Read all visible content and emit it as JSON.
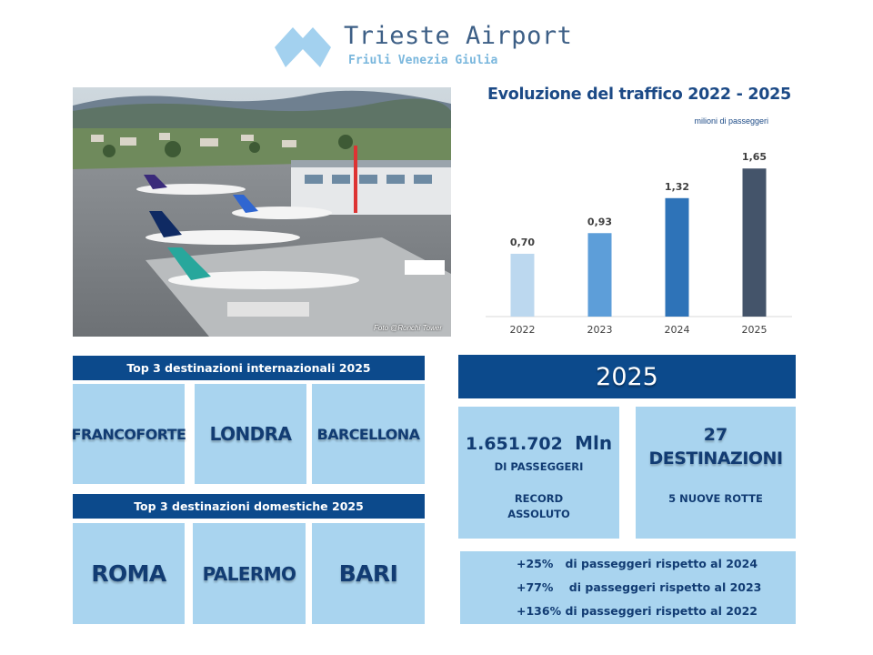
{
  "header": {
    "title": "Trieste Airport",
    "subtitle": "Friuli Venezia Giulia",
    "logo_color": "#a3d1ef"
  },
  "photo": {
    "credit": "Foto @Ronchi Tower"
  },
  "chart_data": {
    "type": "bar",
    "title": "Evoluzione del traffico 2022 - 2025",
    "unit_label": "milioni di passeggeri",
    "categories": [
      "2022",
      "2023",
      "2024",
      "2025"
    ],
    "values": [
      0.7,
      0.93,
      1.32,
      1.65
    ],
    "value_labels": [
      "0,70",
      "0,93",
      "1,32",
      "1,65"
    ],
    "colors": [
      "#bcd8ef",
      "#5d9ed9",
      "#2e73b8",
      "#44546a"
    ],
    "ylim": [
      0,
      2
    ],
    "grid": false,
    "legend": "none"
  },
  "international": {
    "header": "Top 3 destinazioni internazionali 2025",
    "items": [
      "FRANCOFORTE",
      "LONDRA",
      "BARCELLONA"
    ]
  },
  "domestic": {
    "header": "Top 3 destinazioni domestiche 2025",
    "items": [
      "ROMA",
      "PALERMO",
      "BARI"
    ]
  },
  "summary": {
    "year": "2025",
    "passengers": {
      "value": "1.651.702",
      "unit": "Mln",
      "label": "DI PASSEGGERI",
      "record_line1": "RECORD",
      "record_line2": "ASSOLUTO"
    },
    "destinations": {
      "count": "27",
      "label": "DESTINAZIONI",
      "new_routes": "5 NUOVE ROTTE"
    },
    "growth": [
      "+25%   di passeggeri rispetto al 2024",
      "+77%    di passeggeri rispetto al 2023",
      "+136% di passeggeri rispetto al 2022"
    ]
  },
  "colors": {
    "banner": "#0c4a8c",
    "tile": "#a9d4ef",
    "tile_text": "#123c73"
  }
}
